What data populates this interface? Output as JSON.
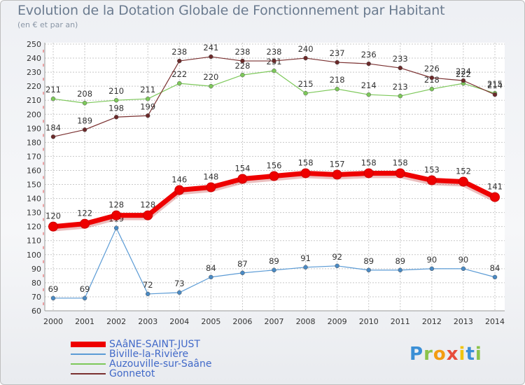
{
  "title": "Evolution de la Dotation Globale de Fonctionnement par Habitant",
  "subtitle": "(en € et par an)",
  "chart_data": {
    "type": "line",
    "title": "Evolution de la Dotation Globale de Fonctionnement par Habitant",
    "ylabel": "(en € et par an)",
    "xlabel": "",
    "x": [
      "2000",
      "2001",
      "2002",
      "2003",
      "2004",
      "2005",
      "2006",
      "2007",
      "2008",
      "2009",
      "2010",
      "2011",
      "2012",
      "2013",
      "2014"
    ],
    "ylim": [
      60,
      250
    ],
    "ytick_step": 10,
    "grid": true,
    "legend_position": "bottom-left",
    "series": [
      {
        "name": "Biville-la-Rivière",
        "color": "#5b9bd5",
        "point_color": "#4a8ac4",
        "weight": "thin",
        "values": [
          69,
          69,
          119,
          72,
          73,
          84,
          87,
          89,
          91,
          92,
          89,
          89,
          90,
          90,
          84
        ]
      },
      {
        "name": "Auzouville-sur-Saâne",
        "color": "#7dc85a",
        "point_color": "#7dc85a",
        "weight": "thin",
        "values": [
          211,
          208,
          210,
          211,
          222,
          220,
          228,
          231,
          215,
          218,
          214,
          213,
          218,
          222,
          215
        ]
      },
      {
        "name": "Gonnetot",
        "color": "#7a3030",
        "point_color": "#6b2a2a",
        "weight": "thin",
        "values": [
          184,
          189,
          198,
          199,
          238,
          241,
          238,
          238,
          240,
          237,
          236,
          233,
          226,
          224,
          214
        ]
      },
      {
        "name": "SAâNE-SAINT-JUST",
        "color": "#ee0000",
        "point_color": "#ee0000",
        "weight": "thick",
        "values": [
          120,
          122,
          128,
          128,
          146,
          148,
          154,
          156,
          158,
          157,
          158,
          158,
          153,
          152,
          141
        ]
      }
    ],
    "legend_order": [
      "SAâNE-SAINT-JUST",
      "Biville-la-Rivière",
      "Auzouville-sur-Saâne",
      "Gonnetot"
    ],
    "legend_text_colors": {
      "SAâNE-SAINT-JUST": "#4169c8",
      "Biville-la-Rivière": "#4169c8",
      "Auzouville-sur-Saâne": "#4169c8",
      "Gonnetot": "#4169c8"
    }
  },
  "branding": {
    "logo_letters": [
      "P",
      "r",
      "o",
      "x",
      "i",
      "t",
      "i"
    ]
  }
}
